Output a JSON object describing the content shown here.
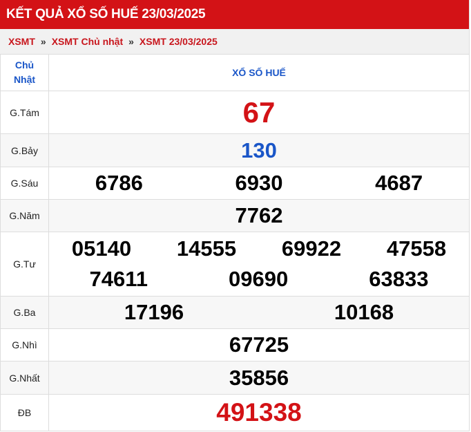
{
  "title": "KẾT QUẢ XỔ SỐ HUẾ 23/03/2025",
  "breadcrumb": [
    "XSMT",
    "XSMT Chủ nhật",
    "XSMT 23/03/2025"
  ],
  "breadcrumb_sep": "»",
  "table": {
    "day_label_1": "Chủ",
    "day_label_2": "Nhật",
    "province": "XỔ SỐ HUẾ",
    "rows": [
      {
        "label": "G.Tám",
        "numbers": [
          "67"
        ]
      },
      {
        "label": "G.Bảy",
        "numbers": [
          "130"
        ]
      },
      {
        "label": "G.Sáu",
        "numbers": [
          "6786",
          "6930",
          "4687"
        ]
      },
      {
        "label": "G.Năm",
        "numbers": [
          "7762"
        ]
      },
      {
        "label": "G.Tư",
        "numbers": [
          "05140",
          "14555",
          "69922",
          "47558",
          "74611",
          "09690",
          "63833"
        ]
      },
      {
        "label": "G.Ba",
        "numbers": [
          "17196",
          "10168"
        ]
      },
      {
        "label": "G.Nhì",
        "numbers": [
          "67725"
        ]
      },
      {
        "label": "G.Nhất",
        "numbers": [
          "35856"
        ]
      },
      {
        "label": "ĐB",
        "numbers": [
          "491338"
        ]
      }
    ]
  },
  "colors": {
    "brand_red": "#d31216",
    "blue": "#1a56c8"
  }
}
